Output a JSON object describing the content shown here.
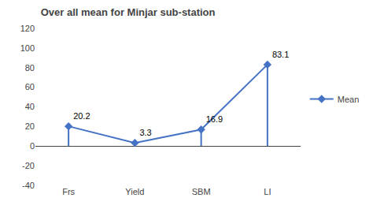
{
  "chart_data": {
    "type": "line",
    "title": "Over all mean for Minjar sub-station",
    "categories": [
      "Frs",
      "Yield",
      "SBM",
      "LI"
    ],
    "series": [
      {
        "name": "Mean",
        "color": "#4472C4",
        "marker": "diamond",
        "values": [
          20.2,
          3.3,
          16.9,
          83.1
        ]
      }
    ],
    "ylim": [
      -40,
      120
    ],
    "yticks": [
      -40,
      -20,
      0,
      20,
      40,
      60,
      80,
      100,
      120
    ],
    "data_labels": true,
    "grid": false,
    "legend": "right"
  }
}
